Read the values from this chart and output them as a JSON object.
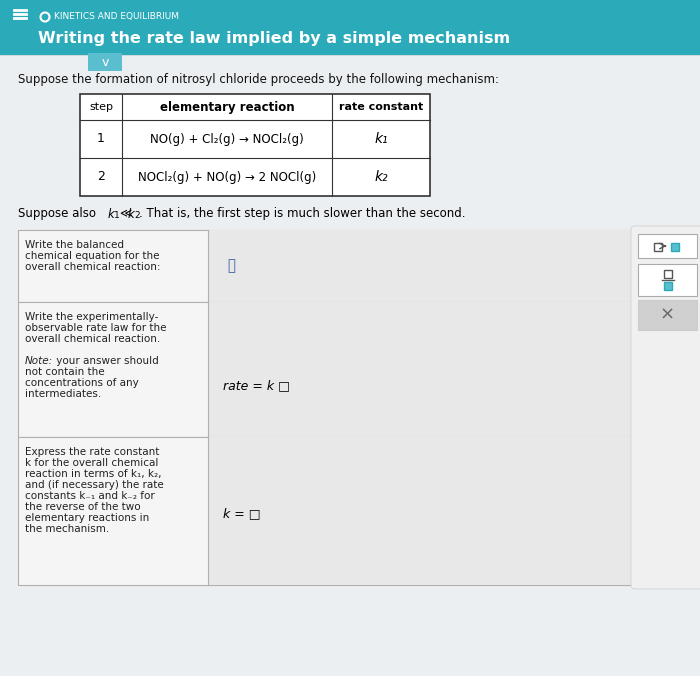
{
  "header_bg": "#2baab9",
  "header_text_color": "#ffffff",
  "header_small": "KINETICS AND EQUILIBRIUM",
  "header_title": "Writing the rate law implied by a simple mechanism",
  "body_bg": "#cfd8dc",
  "content_bg": "#eceff1",
  "intro_text": "Suppose the formation of nitrosyl chloride proceeds by the following mechanism:",
  "table_headers": [
    "step",
    "elementary reaction",
    "rate constant"
  ],
  "table_row1_step": "1",
  "table_row1_reaction": "NO(g) + Cl₂(g) → NOCl₂(g)",
  "table_row1_constant": "k₁",
  "table_row2_step": "2",
  "table_row2_reaction": "NOCl₂(g) + NO(g) → 2 NOCl(g)",
  "table_row2_constant": "k₂",
  "suppose_text_1": "Suppose also ",
  "suppose_k1": "k",
  "suppose_k1_sub": "1",
  "suppose_ll": "≪",
  "suppose_k2": "k",
  "suppose_k2_sub": "2",
  "suppose_text_2": ". That is, the first step is much slower than the second.",
  "box1_label_lines": [
    "Write the balanced",
    "chemical equation for the",
    "overall chemical reaction:"
  ],
  "box2_label_lines": [
    "Write the experimentally-",
    "observable rate law for the",
    "overall chemical reaction.",
    "",
    "Note: your answer should",
    "not contain the",
    "concentrations of any",
    "intermediates."
  ],
  "box2_formula": "rate = k □",
  "box3_label_lines": [
    "Express the rate constant",
    "k for the overall chemical",
    "reaction in terms of k₁, k₂,",
    "and (if necessary) the rate",
    "constants k₋₁ and k₋₂ for",
    "the reverse of the two",
    "elementary reactions in",
    "the mechanism."
  ],
  "box3_formula": "k = □",
  "label_cell_bg": "#f5f5f5",
  "input_cell_bg": "#e8e8e8",
  "box_border": "#b0b0b0",
  "side_btn_bg": "#ffffff",
  "side_btn_border": "#aaaaaa",
  "side_xbtn_bg": "#d0d0d0",
  "teal_btn": "#5bbece"
}
